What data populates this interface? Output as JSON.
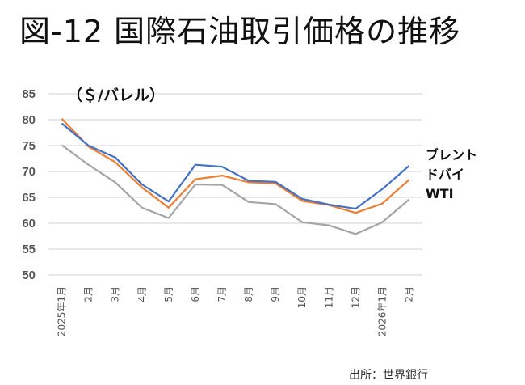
{
  "title": "図-12 国際石油取引価格の推移",
  "source": "出所：世界銀行",
  "chart_data": {
    "type": "line",
    "title": "図-12 国際石油取引価格の推移",
    "unit_label": "（＄/バレル）",
    "xlabel": "",
    "ylabel": "（＄/バレル）",
    "ylim": [
      50,
      85
    ],
    "yticks": [
      50,
      55,
      60,
      65,
      70,
      75,
      80,
      85
    ],
    "grid": true,
    "legend_position": "right",
    "categories": [
      "2025年1月",
      "2月",
      "3月",
      "4月",
      "5月",
      "6月",
      "7月",
      "8月",
      "9月",
      "10月",
      "11月",
      "12月",
      "2026年1月",
      "2月"
    ],
    "series": [
      {
        "name": "ブレント",
        "color": "#4472c4",
        "values": [
          79.3,
          75.0,
          72.7,
          67.5,
          64.2,
          71.3,
          70.9,
          68.2,
          68.0,
          64.7,
          63.6,
          62.8,
          66.6,
          71.1
        ]
      },
      {
        "name": "ドバイ",
        "color": "#ed7d31",
        "values": [
          80.2,
          74.8,
          71.8,
          66.9,
          63.0,
          68.5,
          69.2,
          67.9,
          67.7,
          64.3,
          63.5,
          62.0,
          63.8,
          68.4
        ]
      },
      {
        "name": "WTI",
        "color": "#a5a5a5",
        "values": [
          75.1,
          71.3,
          67.9,
          63.0,
          61.0,
          67.5,
          67.4,
          64.1,
          63.7,
          60.2,
          59.6,
          57.9,
          60.2,
          64.6
        ]
      }
    ]
  }
}
